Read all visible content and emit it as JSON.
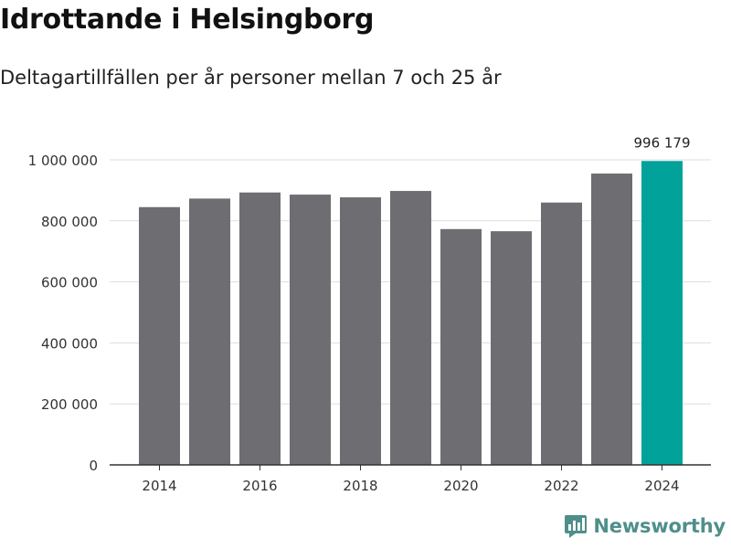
{
  "title": "Idrottande i Helsingborg",
  "subtitle": "Deltagartillfällen per år personer mellan 7 och 25 år",
  "brand": {
    "name": "Newsworthy"
  },
  "colors": {
    "bar": "#6e6d72",
    "highlight": "#00a29a",
    "grid": "#dddddd",
    "axis": "#333333",
    "brand": "#4f8f8a"
  },
  "chart_data": {
    "type": "bar",
    "title": "Idrottande i Helsingborg",
    "subtitle": "Deltagartillfällen per år personer mellan 7 och 25 år",
    "xlabel": "",
    "ylabel": "",
    "categories": [
      "2014",
      "2015",
      "2016",
      "2017",
      "2018",
      "2019",
      "2020",
      "2021",
      "2022",
      "2023",
      "2024"
    ],
    "values": [
      845000,
      873000,
      893000,
      886000,
      877000,
      898000,
      773000,
      766000,
      860000,
      955000,
      996179
    ],
    "highlight_index": 10,
    "annotation": "996 179",
    "ylim": [
      0,
      1000000
    ],
    "yticks": [
      0,
      200000,
      400000,
      600000,
      800000,
      1000000
    ],
    "ytick_labels": [
      "0",
      "200 000",
      "400 000",
      "600 000",
      "800 000",
      "1 000 000"
    ],
    "xtick_labels": [
      "2014",
      "2016",
      "2018",
      "2020",
      "2022",
      "2024"
    ],
    "grid": true
  }
}
